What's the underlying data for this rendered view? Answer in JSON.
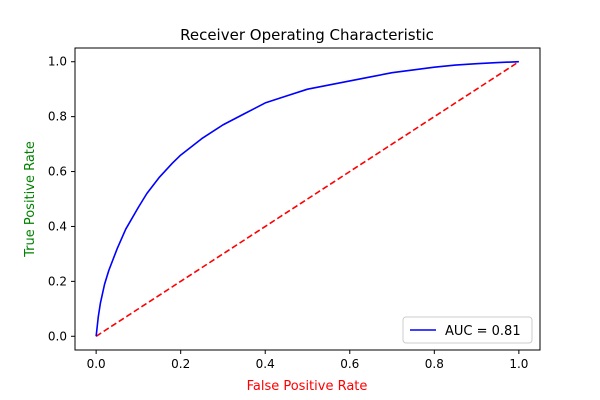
{
  "chart_data": {
    "type": "line",
    "title": "Receiver Operating Characteristic",
    "xlabel": "False Positive Rate",
    "ylabel": "True Positive Rate",
    "xlim": [
      -0.05,
      1.05
    ],
    "ylim": [
      -0.05,
      1.05
    ],
    "xticks": [
      0.0,
      0.2,
      0.4,
      0.6,
      0.8,
      1.0
    ],
    "yticks": [
      0.0,
      0.2,
      0.4,
      0.6,
      0.8,
      1.0
    ],
    "xtick_labels": [
      "0.0",
      "0.2",
      "0.4",
      "0.6",
      "0.8",
      "1.0"
    ],
    "ytick_labels": [
      "0.0",
      "0.2",
      "0.4",
      "0.6",
      "0.8",
      "1.0"
    ],
    "grid": false,
    "legend_position": "lower-right",
    "series": [
      {
        "name": "AUC = 0.81",
        "color": "#0000ff",
        "style": "solid",
        "x": [
          0.0,
          0.005,
          0.01,
          0.02,
          0.03,
          0.05,
          0.07,
          0.1,
          0.12,
          0.15,
          0.18,
          0.2,
          0.25,
          0.3,
          0.35,
          0.4,
          0.45,
          0.5,
          0.55,
          0.6,
          0.65,
          0.7,
          0.75,
          0.8,
          0.85,
          0.9,
          0.95,
          1.0
        ],
        "y": [
          0.0,
          0.07,
          0.12,
          0.19,
          0.24,
          0.32,
          0.39,
          0.47,
          0.52,
          0.58,
          0.63,
          0.66,
          0.72,
          0.77,
          0.81,
          0.85,
          0.875,
          0.9,
          0.915,
          0.93,
          0.945,
          0.96,
          0.97,
          0.98,
          0.988,
          0.993,
          0.997,
          1.0
        ]
      },
      {
        "name": "",
        "color": "#ff0000",
        "style": "dashed",
        "x": [
          0.0,
          1.0
        ],
        "y": [
          0.0,
          1.0
        ]
      }
    ],
    "legend": [
      {
        "label": "AUC = 0.81",
        "color": "#0000ff"
      }
    ]
  },
  "colors": {
    "xlabel": "#ff0000",
    "ylabel": "#008000",
    "axes": "#000000",
    "background": "#ffffff"
  }
}
